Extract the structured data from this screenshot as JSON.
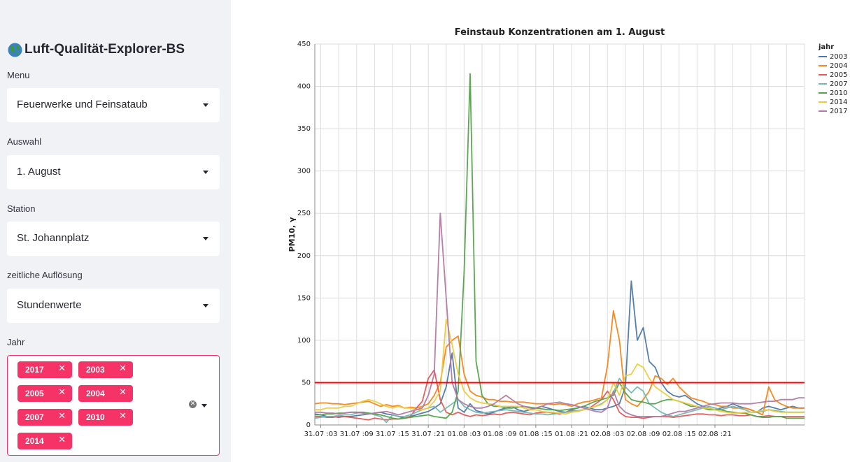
{
  "sidebar": {
    "title": "Luft-Qualität-Explorer-BS",
    "menu": {
      "label": "Menu",
      "value": "Feuerwerke und Feinsataub"
    },
    "auswahl": {
      "label": "Auswahl",
      "value": "1. August"
    },
    "station": {
      "label": "Station",
      "value": "St. Johannplatz"
    },
    "aufloesung": {
      "label": "zeitliche Auflösung",
      "value": "Stundenwerte"
    },
    "jahr": {
      "label": "Jahr",
      "tags": [
        "2017",
        "2003",
        "2005",
        "2004",
        "2007",
        "2010",
        "2014"
      ]
    },
    "accent_color": "#f63366"
  },
  "chart_data": {
    "type": "line",
    "title": "Feinstaub Konzentrationen am 1. August",
    "ylabel": "PM10, γ",
    "xlabel": "",
    "ylim": [
      0,
      450
    ],
    "yticks": [
      0,
      50,
      100,
      150,
      200,
      250,
      300,
      350,
      400,
      450
    ],
    "xticks": [
      "31.07 :03",
      "31.07 :09",
      "31.07 :15",
      "31.07 :21",
      "01.08 :03",
      "01.08 :09",
      "01.08 :15",
      "01.08 :21",
      "02.08 :03",
      "02.08 :09",
      "02.08 :15",
      "02.08 :21"
    ],
    "x_start": "31.07 02:00",
    "x_step_hours": 1,
    "grid": true,
    "legend_title": "jahr",
    "legend_position": "top-right",
    "threshold": {
      "value": 50,
      "color": "#ff0000"
    },
    "series": [
      {
        "name": "2003",
        "color": "#4c78a8",
        "values": [
          13,
          12,
          10,
          10,
          9,
          10,
          10,
          11,
          12,
          13,
          14,
          15,
          13,
          12,
          10,
          8,
          10,
          12,
          14,
          16,
          20,
          25,
          45,
          85,
          20,
          15,
          25,
          17,
          15,
          13,
          15,
          18,
          20,
          22,
          18,
          16,
          18,
          20,
          22,
          20,
          18,
          16,
          15,
          18,
          20,
          22,
          20,
          18,
          18,
          20,
          22,
          25,
          45,
          170,
          100,
          115,
          75,
          68,
          50,
          40,
          35,
          33,
          35,
          30,
          25,
          22,
          20,
          18,
          20,
          22,
          25,
          22,
          20,
          18,
          15,
          20,
          22,
          20,
          18,
          20,
          22,
          20,
          20
        ]
      },
      {
        "name": "2004",
        "color": "#f58518",
        "values": [
          25,
          26,
          26,
          25,
          25,
          24,
          25,
          26,
          27,
          28,
          25,
          22,
          24,
          22,
          23,
          20,
          21,
          20,
          22,
          25,
          35,
          50,
          92,
          100,
          105,
          60,
          40,
          35,
          33,
          30,
          30,
          28,
          28,
          27,
          27,
          27,
          26,
          25,
          25,
          25,
          24,
          25,
          24,
          22,
          25,
          27,
          28,
          30,
          32,
          70,
          135,
          100,
          30,
          25,
          22,
          30,
          40,
          58,
          55,
          48,
          55,
          45,
          38,
          32,
          30,
          28,
          25,
          24,
          22,
          22,
          20,
          20,
          20,
          18,
          15,
          12,
          45,
          30,
          25,
          22,
          20,
          20,
          20
        ]
      },
      {
        "name": "2005",
        "color": "#e45756",
        "values": [
          10,
          10,
          9,
          9,
          10,
          10,
          9,
          8,
          7,
          6,
          8,
          7,
          6,
          7,
          7,
          8,
          10,
          20,
          28,
          55,
          65,
          30,
          15,
          12,
          15,
          12,
          10,
          12,
          11,
          12,
          13,
          12,
          14,
          15,
          14,
          13,
          12,
          14,
          15,
          15,
          14,
          13,
          15,
          17,
          16,
          18,
          20,
          25,
          30,
          40,
          30,
          15,
          10,
          9,
          9,
          8,
          9,
          10,
          10,
          10,
          9,
          10,
          11,
          12,
          13,
          13,
          12,
          12,
          11,
          12,
          12,
          11,
          11,
          12,
          10,
          10,
          11,
          10,
          10,
          10,
          10,
          10,
          10
        ]
      },
      {
        "name": "2007",
        "color": "#72b7b2",
        "values": [
          8,
          9,
          10,
          10,
          11,
          12,
          12,
          14,
          15,
          14,
          12,
          10,
          3,
          12,
          10,
          10,
          12,
          15,
          18,
          20,
          22,
          15,
          20,
          25,
          30,
          22,
          18,
          15,
          14,
          15,
          16,
          17,
          18,
          17,
          16,
          15,
          14,
          13,
          13,
          12,
          13,
          14,
          15,
          16,
          17,
          18,
          20,
          22,
          25,
          30,
          38,
          55,
          45,
          38,
          45,
          40,
          25,
          20,
          15,
          12,
          10,
          12,
          14,
          16,
          18,
          20,
          22,
          20,
          18,
          20,
          22,
          20,
          18,
          15,
          15,
          16,
          18,
          17,
          16,
          15,
          15,
          15,
          15
        ]
      },
      {
        "name": "2010",
        "color": "#54a24b",
        "values": [
          12,
          12,
          13,
          13,
          14,
          14,
          15,
          15,
          15,
          14,
          13,
          12,
          10,
          8,
          7,
          8,
          9,
          10,
          11,
          12,
          10,
          9,
          8,
          15,
          40,
          180,
          415,
          75,
          35,
          25,
          22,
          22,
          20,
          20,
          21,
          22,
          21,
          20,
          19,
          18,
          18,
          17,
          18,
          19,
          20,
          22,
          25,
          28,
          30,
          32,
          35,
          50,
          38,
          30,
          28,
          27,
          25,
          25,
          28,
          30,
          30,
          28,
          25,
          22,
          22,
          20,
          18,
          18,
          18,
          16,
          15,
          14,
          14,
          12,
          10,
          9,
          9,
          10,
          10,
          8,
          8,
          8,
          8
        ]
      },
      {
        "name": "2014",
        "color": "#eeca3b",
        "values": [
          18,
          18,
          20,
          20,
          20,
          22,
          22,
          25,
          28,
          30,
          28,
          25,
          22,
          20,
          22,
          20,
          20,
          18,
          18,
          20,
          28,
          40,
          125,
          95,
          60,
          40,
          32,
          28,
          26,
          25,
          24,
          22,
          22,
          22,
          22,
          20,
          18,
          18,
          16,
          15,
          15,
          14,
          13,
          15,
          16,
          18,
          20,
          22,
          24,
          30,
          50,
          35,
          58,
          60,
          72,
          68,
          55,
          45,
          40,
          35,
          30,
          28,
          26,
          24,
          22,
          20,
          20,
          18,
          16,
          15,
          14,
          14,
          15,
          15,
          16,
          17,
          18,
          16,
          15,
          15,
          15,
          15,
          15
        ]
      },
      {
        "name": "2017",
        "color": "#b279a2",
        "values": [
          15,
          15,
          14,
          14,
          13,
          14,
          15,
          15,
          14,
          13,
          14,
          15,
          16,
          14,
          12,
          14,
          16,
          18,
          20,
          35,
          60,
          250,
          150,
          50,
          30,
          25,
          22,
          20,
          20,
          22,
          25,
          30,
          35,
          30,
          25,
          22,
          20,
          20,
          22,
          25,
          26,
          27,
          25,
          24,
          22,
          20,
          18,
          16,
          15,
          20,
          40,
          22,
          15,
          12,
          10,
          10,
          10,
          10,
          10,
          12,
          14,
          16,
          16,
          18,
          20,
          22,
          24,
          25,
          26,
          26,
          26,
          25,
          25,
          25,
          26,
          27,
          28,
          28,
          30,
          30,
          30,
          32,
          32
        ]
      }
    ]
  }
}
